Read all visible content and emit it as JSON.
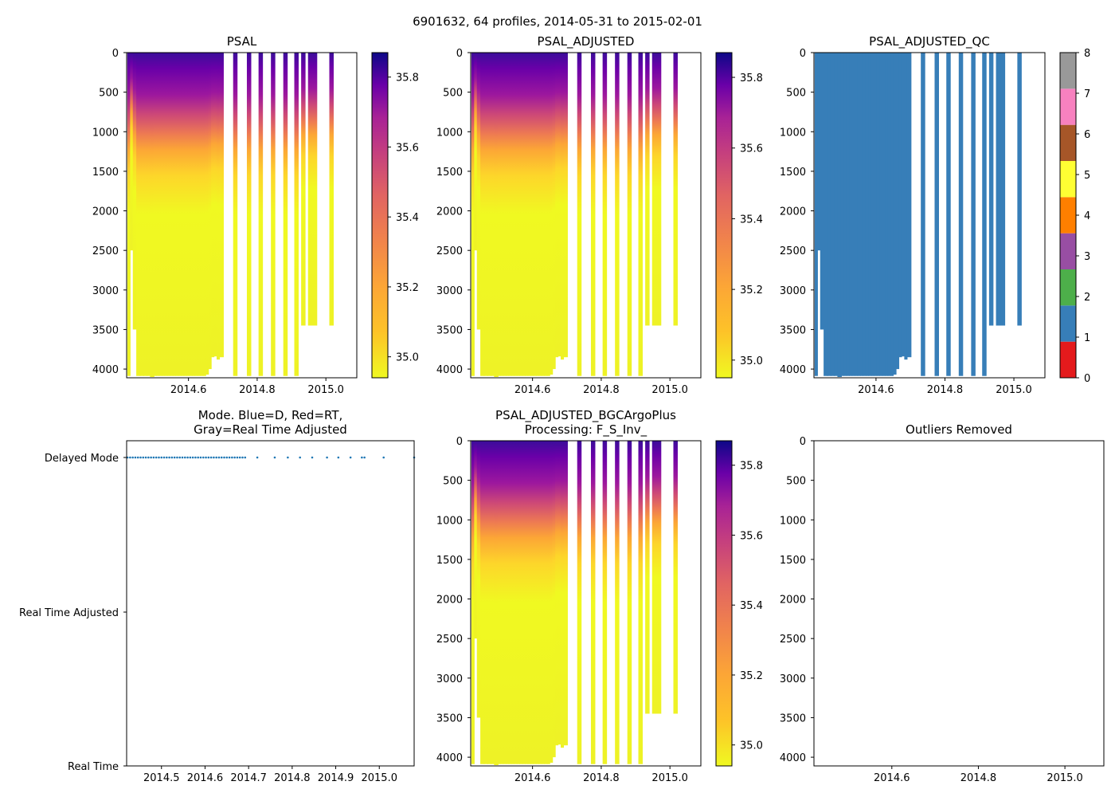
{
  "figure_title": "6901632, 64 profiles, 2014-05-31 to 2015-02-01",
  "colors": {
    "qc": [
      "#e41a1c",
      "#377eb8",
      "#4daf4a",
      "#984ea3",
      "#ff7f00",
      "#ffff33",
      "#a65628",
      "#f781bf",
      "#999999"
    ],
    "profile_fill": "#377eb8",
    "mode_point": "#1f77b4"
  },
  "chart_data": [
    {
      "id": "psal",
      "type": "heatmap",
      "title": "PSAL",
      "xlim": [
        2014.42,
        2015.09
      ],
      "ylim": [
        4110,
        0
      ],
      "xticks": [
        "2014.6",
        "2014.8",
        "2015.0"
      ],
      "yticks": [
        "0",
        "500",
        "1000",
        "1500",
        "2000",
        "2500",
        "3000",
        "3500",
        "4000"
      ],
      "colorbar": {
        "range": [
          34.94,
          35.87
        ],
        "ticks": [
          "35.0",
          "35.2",
          "35.4",
          "35.6",
          "35.8"
        ]
      }
    },
    {
      "id": "psal_adj",
      "type": "heatmap",
      "title": "PSAL_ADJUSTED",
      "xlim": [
        2014.42,
        2015.09
      ],
      "ylim": [
        4110,
        0
      ],
      "xticks": [
        "2014.6",
        "2014.8",
        "2015.0"
      ],
      "yticks": [
        "0",
        "500",
        "1000",
        "1500",
        "2000",
        "2500",
        "3000",
        "3500",
        "4000"
      ],
      "colorbar": {
        "range": [
          34.95,
          35.87
        ],
        "ticks": [
          "35.0",
          "35.2",
          "35.4",
          "35.6",
          "35.8"
        ]
      }
    },
    {
      "id": "psal_qc",
      "type": "heatmap",
      "title": "PSAL_ADJUSTED_QC",
      "xlim": [
        2014.42,
        2015.09
      ],
      "ylim": [
        4110,
        0
      ],
      "xticks": [
        "2014.6",
        "2014.8",
        "2015.0"
      ],
      "yticks": [
        "0",
        "500",
        "1000",
        "1500",
        "2000",
        "2500",
        "3000",
        "3500",
        "4000"
      ],
      "colorbar": {
        "range": [
          0,
          8
        ],
        "ticks": [
          "0",
          "1",
          "2",
          "3",
          "4",
          "5",
          "6",
          "7",
          "8"
        ],
        "categorical": true
      },
      "qc_value_shown": 1
    },
    {
      "id": "mode",
      "type": "scatter",
      "title": "Mode. Blue=D, Red=RT,\nGray=Real Time Adjusted",
      "xlim": [
        2014.42,
        2015.08
      ],
      "xticks": [
        "2014.5",
        "2014.6",
        "2014.7",
        "2014.8",
        "2014.9",
        "2015.0"
      ],
      "yticks": [
        "Real Time",
        "Real Time Adjusted",
        "Delayed Mode"
      ],
      "mode_values": {
        "Real Time": 0,
        "Real Time Adjusted": 1,
        "Delayed Mode": 2
      },
      "points_mode": "Delayed Mode"
    },
    {
      "id": "psal_bgc",
      "type": "heatmap",
      "title": "PSAL_ADJUSTED_BGCArgoPlus\nProcessing: F_S_Inv_",
      "xlim": [
        2014.42,
        2015.09
      ],
      "ylim": [
        4110,
        0
      ],
      "xticks": [
        "2014.6",
        "2014.8",
        "2015.0"
      ],
      "yticks": [
        "0",
        "500",
        "1000",
        "1500",
        "2000",
        "2500",
        "3000",
        "3500",
        "4000"
      ],
      "colorbar": {
        "range": [
          34.94,
          35.87
        ],
        "ticks": [
          "35.0",
          "35.2",
          "35.4",
          "35.6",
          "35.8"
        ]
      }
    },
    {
      "id": "outliers",
      "type": "scatter",
      "title": "Outliers Removed",
      "xlim": [
        2014.42,
        2015.09
      ],
      "ylim": [
        4110,
        0
      ],
      "xticks": [
        "2014.6",
        "2014.8",
        "2015.0"
      ],
      "yticks": [
        "0",
        "500",
        "1000",
        "1500",
        "2000",
        "2500",
        "3000",
        "3500",
        "4000"
      ],
      "points": []
    }
  ],
  "profiles": [
    {
      "t": 2014.422,
      "d": 4087
    },
    {
      "t": 2014.43,
      "d": 2500
    },
    {
      "t": 2014.438,
      "d": 3500
    },
    {
      "t": 2014.448,
      "d": 4087
    },
    {
      "t": 2014.458,
      "d": 4087
    },
    {
      "t": 2014.468,
      "d": 4087
    },
    {
      "t": 2014.478,
      "d": 4087
    },
    {
      "t": 2014.488,
      "d": 4100
    },
    {
      "t": 2014.498,
      "d": 4087
    },
    {
      "t": 2014.506,
      "d": 4087
    },
    {
      "t": 2014.514,
      "d": 4087
    },
    {
      "t": 2014.522,
      "d": 4087
    },
    {
      "t": 2014.53,
      "d": 4087
    },
    {
      "t": 2014.538,
      "d": 4087
    },
    {
      "t": 2014.546,
      "d": 4087
    },
    {
      "t": 2014.554,
      "d": 4087
    },
    {
      "t": 2014.562,
      "d": 4087
    },
    {
      "t": 2014.57,
      "d": 4087
    },
    {
      "t": 2014.578,
      "d": 4087
    },
    {
      "t": 2014.586,
      "d": 4087
    },
    {
      "t": 2014.594,
      "d": 4087
    },
    {
      "t": 2014.602,
      "d": 4087
    },
    {
      "t": 2014.61,
      "d": 4087
    },
    {
      "t": 2014.618,
      "d": 4087
    },
    {
      "t": 2014.626,
      "d": 4087
    },
    {
      "t": 2014.634,
      "d": 4087
    },
    {
      "t": 2014.642,
      "d": 4087
    },
    {
      "t": 2014.65,
      "d": 4070
    },
    {
      "t": 2014.658,
      "d": 4000
    },
    {
      "t": 2014.666,
      "d": 3850
    },
    {
      "t": 2014.674,
      "d": 3840
    },
    {
      "t": 2014.682,
      "d": 3880
    },
    {
      "t": 2014.69,
      "d": 3850
    },
    {
      "t": 2014.73,
      "d": 4087
    },
    {
      "t": 2014.77,
      "d": 4087
    },
    {
      "t": 2014.804,
      "d": 4087
    },
    {
      "t": 2014.84,
      "d": 4087
    },
    {
      "t": 2014.876,
      "d": 4087
    },
    {
      "t": 2014.908,
      "d": 4087
    },
    {
      "t": 2014.928,
      "d": 3450
    },
    {
      "t": 2014.948,
      "d": 3450
    },
    {
      "t": 2014.956,
      "d": 3450
    },
    {
      "t": 2014.962,
      "d": 3450
    },
    {
      "t": 2015.01,
      "d": 3450
    }
  ],
  "mode_times": [
    2014.422,
    2014.428,
    2014.434,
    2014.44,
    2014.446,
    2014.452,
    2014.458,
    2014.464,
    2014.47,
    2014.476,
    2014.482,
    2014.488,
    2014.494,
    2014.5,
    2014.506,
    2014.512,
    2014.518,
    2014.524,
    2014.53,
    2014.536,
    2014.542,
    2014.548,
    2014.554,
    2014.56,
    2014.566,
    2014.572,
    2014.578,
    2014.584,
    2014.59,
    2014.596,
    2014.602,
    2014.608,
    2014.614,
    2014.62,
    2014.626,
    2014.632,
    2014.638,
    2014.644,
    2014.65,
    2014.656,
    2014.662,
    2014.668,
    2014.674,
    2014.68,
    2014.686,
    2014.692,
    2014.72,
    2014.76,
    2014.79,
    2014.818,
    2014.846,
    2014.88,
    2014.906,
    2014.934,
    2014.96,
    2014.966,
    2015.01,
    2015.08
  ]
}
